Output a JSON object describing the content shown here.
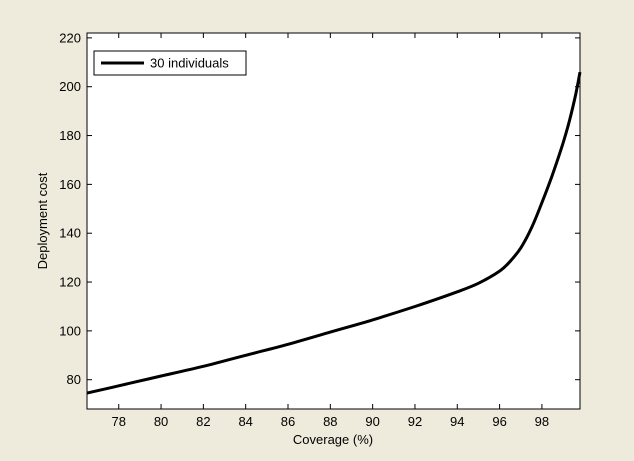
{
  "chart_data": {
    "type": "line",
    "title": "",
    "xlabel": "Coverage (%)",
    "ylabel": "Deployment cost",
    "xlim": [
      76.5,
      99.8
    ],
    "ylim": [
      68,
      222
    ],
    "xticks": [
      78,
      80,
      82,
      84,
      86,
      88,
      90,
      92,
      94,
      96,
      98
    ],
    "yticks": [
      80,
      100,
      120,
      140,
      160,
      180,
      200,
      220
    ],
    "grid": false,
    "legend_position": "top-left",
    "series": [
      {
        "name": "30 individuals",
        "color": "#000000",
        "x": [
          76.5,
          78,
          80,
          82,
          84,
          86,
          88,
          90,
          92,
          94,
          95,
          96,
          96.5,
          97,
          97.5,
          98,
          98.5,
          99,
          99.3,
          99.6,
          99.8
        ],
        "y": [
          74.5,
          77.5,
          81.5,
          85.5,
          90,
          94.5,
          99.5,
          104.5,
          110,
          116,
          119.5,
          124.5,
          128.5,
          134,
          142,
          152.5,
          164,
          177,
          186,
          197,
          206
        ]
      }
    ]
  }
}
